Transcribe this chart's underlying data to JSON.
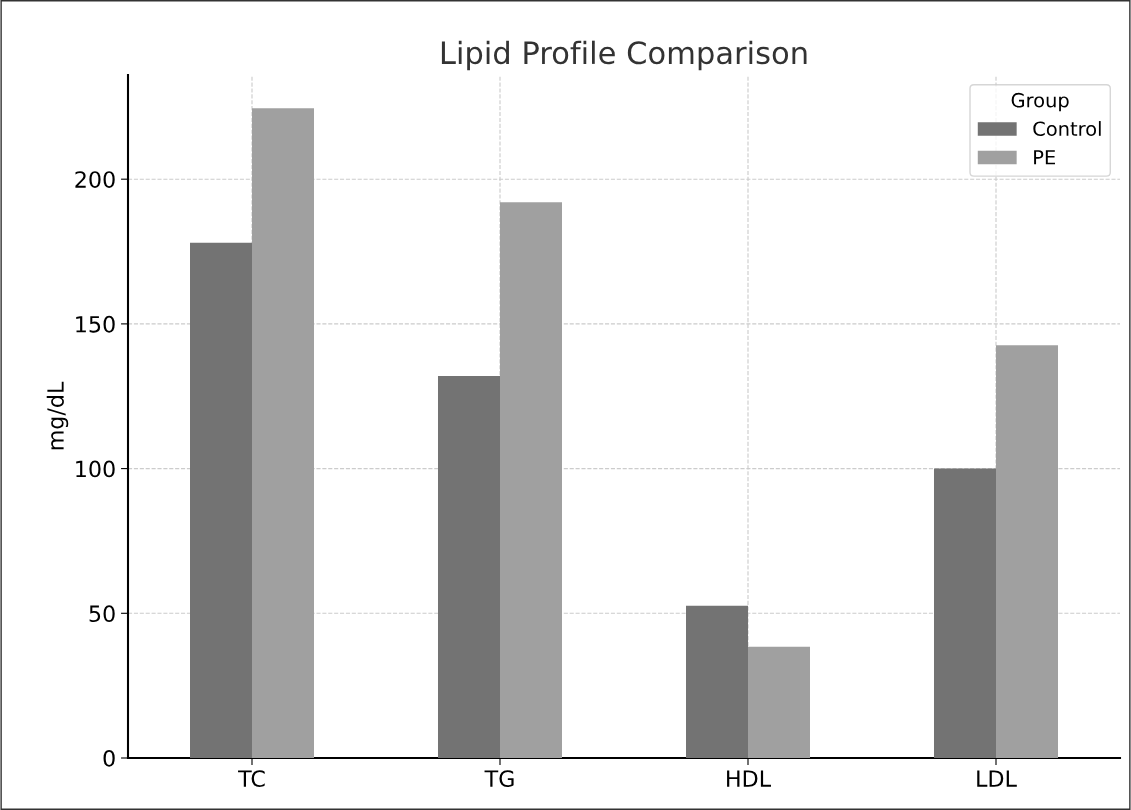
{
  "chart_data": {
    "type": "bar",
    "title": "Lipid Profile Comparison",
    "ylabel": "mg/dL",
    "legend_title": "Group",
    "categories": [
      "TC",
      "TG",
      "HDL",
      "LDL"
    ],
    "series": [
      {
        "name": "Control",
        "color": "#737373",
        "values": [
          178,
          132,
          52.6,
          100
        ]
      },
      {
        "name": "PE",
        "color": "#a0a0a0",
        "values": [
          224.5,
          192,
          38.4,
          142.6
        ]
      }
    ],
    "ylim": [
      0,
      236
    ],
    "yticks": [
      0,
      50,
      100,
      150,
      200
    ],
    "grid": true,
    "legend": "top right"
  }
}
